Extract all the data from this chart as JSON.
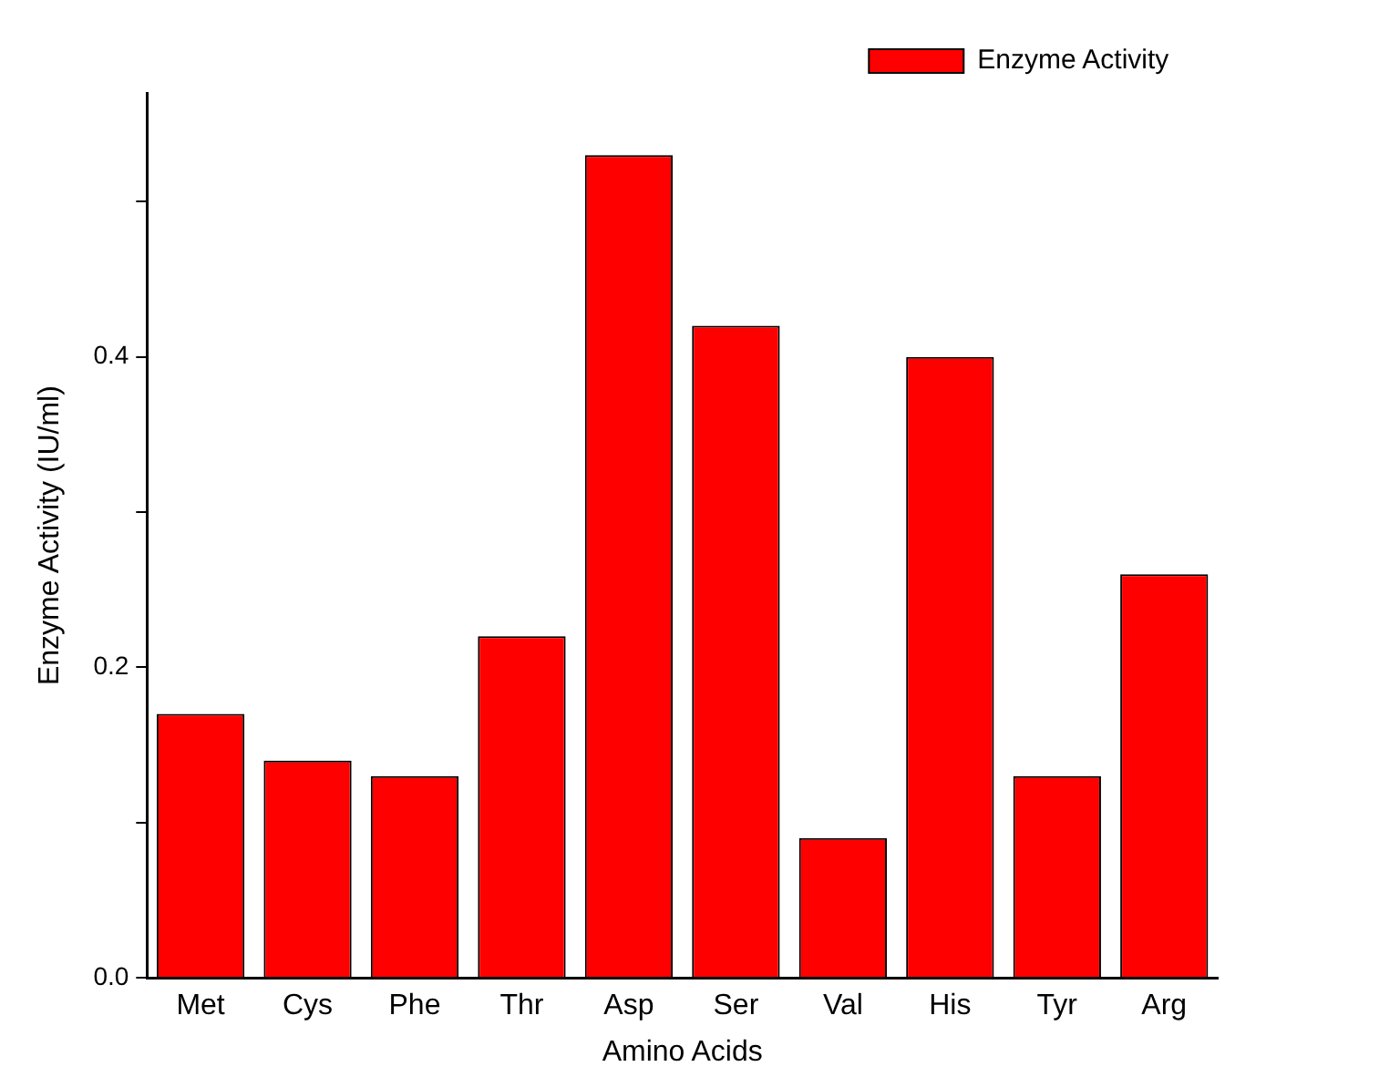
{
  "chart_data": {
    "type": "bar",
    "xlabel": "Amino Acids",
    "ylabel": "Enzyme Activity (IU/ml)",
    "categories": [
      "Met",
      "Cys",
      "Phe",
      "Thr",
      "Asp",
      "Ser",
      "Val",
      "His",
      "Tyr",
      "Arg"
    ],
    "series": [
      {
        "name": "Enzyme Activity",
        "color": "#ff0000",
        "values": [
          0.17,
          0.14,
          0.13,
          0.22,
          0.53,
          0.42,
          0.09,
          0.4,
          0.13,
          0.26
        ]
      }
    ],
    "ylim": [
      0,
      0.57
    ],
    "yticks": [
      {
        "value": 0,
        "label": "0.0"
      },
      {
        "value": 0.1,
        "label": null
      },
      {
        "value": 0.2,
        "label": "0.2"
      },
      {
        "value": 0.3,
        "label": null
      },
      {
        "value": 0.4,
        "label": "0.4"
      },
      {
        "value": 0.5,
        "label": null
      }
    ],
    "grid": false,
    "legend": "top right"
  }
}
